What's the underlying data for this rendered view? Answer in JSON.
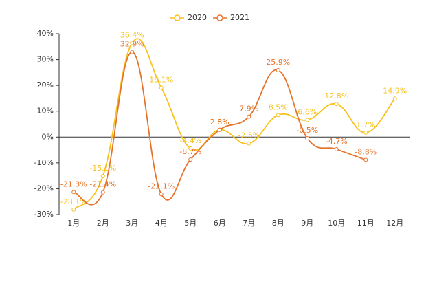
{
  "chart_data": {
    "type": "line",
    "categories": [
      "1月",
      "2月",
      "3月",
      "4月",
      "5月",
      "6月",
      "7月",
      "8月",
      "9月",
      "10月",
      "11月",
      "12月"
    ],
    "series": [
      {
        "name": "2020",
        "color": "#f7c11e",
        "values": [
          -28.1,
          -15.1,
          36.4,
          19.1,
          -4.4,
          2.8,
          -2.5,
          8.5,
          6.6,
          12.8,
          1.7,
          14.9
        ],
        "value_labels": [
          "-28.1%",
          "-15.1%",
          "36.4%",
          "19.1%",
          "-4.4%",
          "2.8%",
          "-2.5%",
          "8.5%",
          "6.6%",
          "12.8%",
          "1.7%",
          "14.9%"
        ]
      },
      {
        "name": "2021",
        "color": "#e6732a",
        "values": [
          -21.3,
          -21.4,
          32.9,
          -22.1,
          -8.7,
          2.8,
          7.9,
          25.9,
          -0.5,
          -4.7,
          -8.8,
          null
        ],
        "value_labels": [
          "-21.3%",
          "-21.4%",
          "32.9%",
          "-22.1%",
          "-8.7%",
          "2.8%",
          "7.9%",
          "25.9%",
          "-0.5%",
          "-4.7%",
          "-8.8%",
          null
        ]
      }
    ],
    "ylim": [
      -30,
      40
    ],
    "yticks": [
      {
        "value": -30,
        "label": "-30%"
      },
      {
        "value": -20,
        "label": "-20%"
      },
      {
        "value": -10,
        "label": "-10%"
      },
      {
        "value": 0,
        "label": "0%"
      },
      {
        "value": 10,
        "label": "10%"
      },
      {
        "value": 20,
        "label": "20%"
      },
      {
        "value": 30,
        "label": "30%"
      },
      {
        "value": 40,
        "label": "40%"
      }
    ],
    "legend": "top"
  }
}
